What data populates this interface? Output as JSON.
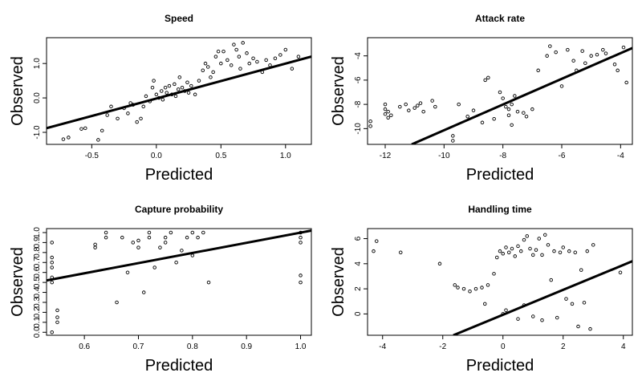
{
  "figure": {
    "xlabel": "Predicted",
    "ylabel": "Observed"
  },
  "chart_data": [
    {
      "type": "scatter",
      "title": "Speed",
      "xlabel": "Predicted",
      "ylabel": "Observed",
      "xlim": [
        -0.85,
        1.2
      ],
      "ylim": [
        -1.35,
        1.75
      ],
      "xticks": [
        -0.5,
        0.0,
        0.5,
        1.0
      ],
      "xtick_labels": [
        "-0.5",
        "0.0",
        "0.5",
        "1.0"
      ],
      "yticks": [
        -1.0,
        0.0,
        1.0
      ],
      "ytick_labels": [
        "-1.0",
        "0.0",
        "1.0"
      ],
      "grid": false,
      "fit_line": {
        "x": [
          -0.85,
          1.2
        ],
        "y": [
          -0.88,
          1.2
        ]
      },
      "points": [
        [
          -0.72,
          -1.2
        ],
        [
          -0.68,
          -1.15
        ],
        [
          -0.58,
          -0.9
        ],
        [
          -0.55,
          -0.88
        ],
        [
          -0.45,
          -1.22
        ],
        [
          -0.42,
          -0.95
        ],
        [
          -0.38,
          -0.5
        ],
        [
          -0.35,
          -0.25
        ],
        [
          -0.3,
          -0.6
        ],
        [
          -0.25,
          -0.3
        ],
        [
          -0.22,
          -0.45
        ],
        [
          -0.2,
          -0.15
        ],
        [
          -0.18,
          -0.2
        ],
        [
          -0.15,
          -0.7
        ],
        [
          -0.12,
          -0.6
        ],
        [
          -0.1,
          -0.25
        ],
        [
          -0.08,
          0.05
        ],
        [
          -0.05,
          -0.1
        ],
        [
          -0.03,
          0.3
        ],
        [
          -0.02,
          0.5
        ],
        [
          0.0,
          0.1
        ],
        [
          0.02,
          0.0
        ],
        [
          0.04,
          0.2
        ],
        [
          0.05,
          -0.05
        ],
        [
          0.07,
          0.3
        ],
        [
          0.08,
          0.15
        ],
        [
          0.1,
          0.35
        ],
        [
          0.12,
          0.1
        ],
        [
          0.14,
          0.4
        ],
        [
          0.15,
          0.05
        ],
        [
          0.17,
          0.25
        ],
        [
          0.18,
          0.6
        ],
        [
          0.2,
          0.3
        ],
        [
          0.22,
          0.2
        ],
        [
          0.24,
          0.45
        ],
        [
          0.25,
          0.15
        ],
        [
          0.27,
          0.35
        ],
        [
          0.3,
          0.1
        ],
        [
          0.33,
          0.5
        ],
        [
          0.36,
          0.8
        ],
        [
          0.38,
          1.0
        ],
        [
          0.4,
          0.9
        ],
        [
          0.42,
          0.6
        ],
        [
          0.44,
          0.75
        ],
        [
          0.46,
          1.2
        ],
        [
          0.48,
          1.35
        ],
        [
          0.5,
          1.0
        ],
        [
          0.52,
          1.35
        ],
        [
          0.55,
          1.1
        ],
        [
          0.58,
          0.95
        ],
        [
          0.6,
          1.55
        ],
        [
          0.62,
          1.4
        ],
        [
          0.64,
          1.2
        ],
        [
          0.65,
          0.85
        ],
        [
          0.67,
          1.6
        ],
        [
          0.7,
          1.3
        ],
        [
          0.72,
          1.0
        ],
        [
          0.75,
          1.15
        ],
        [
          0.78,
          1.05
        ],
        [
          0.82,
          0.75
        ],
        [
          0.85,
          1.1
        ],
        [
          0.88,
          0.95
        ],
        [
          0.92,
          1.15
        ],
        [
          0.96,
          1.25
        ],
        [
          1.0,
          1.4
        ],
        [
          1.05,
          0.85
        ],
        [
          1.1,
          1.2
        ]
      ]
    },
    {
      "type": "scatter",
      "title": "Attack rate",
      "xlabel": "Predicted",
      "ylabel": "Observed",
      "xlim": [
        -12.6,
        -3.6
      ],
      "ylim": [
        -11.3,
        -2.5
      ],
      "xticks": [
        -12,
        -10,
        -8,
        -6,
        -4
      ],
      "xtick_labels": [
        "-12",
        "-10",
        "-8",
        "-6",
        "-4"
      ],
      "yticks": [
        -10,
        -8,
        -6,
        -4
      ],
      "ytick_labels": [
        "-10",
        "-8",
        "-6",
        "-4"
      ],
      "grid": false,
      "fit_line": {
        "x": [
          -11.1,
          -3.6
        ],
        "y": [
          -11.3,
          -3.35
        ]
      },
      "points": [
        [
          -12.5,
          -9.4
        ],
        [
          -12.5,
          -9.8
        ],
        [
          -12.0,
          -8.0
        ],
        [
          -12.0,
          -8.4
        ],
        [
          -12.0,
          -8.8
        ],
        [
          -11.9,
          -9.1
        ],
        [
          -11.9,
          -8.6
        ],
        [
          -11.8,
          -8.9
        ],
        [
          -11.5,
          -8.2
        ],
        [
          -11.3,
          -8.0
        ],
        [
          -11.2,
          -8.5
        ],
        [
          -11.0,
          -8.3
        ],
        [
          -10.9,
          -8.1
        ],
        [
          -10.8,
          -7.9
        ],
        [
          -10.7,
          -8.6
        ],
        [
          -10.4,
          -7.7
        ],
        [
          -10.3,
          -8.2
        ],
        [
          -9.7,
          -11.0
        ],
        [
          -9.7,
          -10.6
        ],
        [
          -9.5,
          -8.0
        ],
        [
          -9.2,
          -9.0
        ],
        [
          -9.0,
          -8.5
        ],
        [
          -8.7,
          -9.5
        ],
        [
          -8.6,
          -6.0
        ],
        [
          -8.5,
          -5.8
        ],
        [
          -8.3,
          -9.2
        ],
        [
          -8.1,
          -7.0
        ],
        [
          -8.0,
          -7.5
        ],
        [
          -7.9,
          -8.2
        ],
        [
          -7.8,
          -8.4
        ],
        [
          -7.8,
          -8.9
        ],
        [
          -7.7,
          -9.7
        ],
        [
          -7.7,
          -8.0
        ],
        [
          -7.6,
          -7.3
        ],
        [
          -7.5,
          -8.6
        ],
        [
          -7.3,
          -8.7
        ],
        [
          -7.2,
          -9.0
        ],
        [
          -7.0,
          -8.4
        ],
        [
          -6.8,
          -5.2
        ],
        [
          -6.5,
          -4.0
        ],
        [
          -6.4,
          -3.2
        ],
        [
          -6.2,
          -3.7
        ],
        [
          -6.0,
          -6.5
        ],
        [
          -5.8,
          -3.5
        ],
        [
          -5.6,
          -4.4
        ],
        [
          -5.5,
          -5.2
        ],
        [
          -5.3,
          -3.6
        ],
        [
          -5.2,
          -4.6
        ],
        [
          -5.0,
          -4.0
        ],
        [
          -4.8,
          -3.9
        ],
        [
          -4.6,
          -3.5
        ],
        [
          -4.5,
          -3.8
        ],
        [
          -4.2,
          -4.7
        ],
        [
          -4.1,
          -5.2
        ],
        [
          -3.9,
          -3.3
        ],
        [
          -3.8,
          -6.2
        ]
      ]
    },
    {
      "type": "scatter",
      "title": "Capture probability",
      "xlabel": "Predicted",
      "ylabel": "Observed",
      "xlim": [
        0.53,
        1.02
      ],
      "ylim": [
        -0.03,
        1.04
      ],
      "xticks": [
        0.6,
        0.7,
        0.8,
        0.9,
        1.0
      ],
      "xtick_labels": [
        "0.6",
        "0.7",
        "0.8",
        "0.9",
        "1.0"
      ],
      "yticks": [
        0.0,
        0.1,
        0.2,
        0.3,
        0.4,
        0.5,
        0.6,
        0.7,
        0.8,
        0.9,
        1.0
      ],
      "ytick_labels": [
        "0.0",
        "0.1",
        "0.2",
        "0.3",
        "0.4",
        "0.5",
        "0.6",
        "0.7",
        "0.8",
        "0.9",
        "1.0"
      ],
      "grid": false,
      "fit_line": {
        "x": [
          0.53,
          1.02
        ],
        "y": [
          0.52,
          1.02
        ]
      },
      "points": [
        [
          0.54,
          0.0
        ],
        [
          0.54,
          0.5
        ],
        [
          0.54,
          0.55
        ],
        [
          0.54,
          0.65
        ],
        [
          0.54,
          0.7
        ],
        [
          0.54,
          0.75
        ],
        [
          0.54,
          0.9
        ],
        [
          0.55,
          0.1
        ],
        [
          0.55,
          0.15
        ],
        [
          0.55,
          0.22
        ],
        [
          0.62,
          0.85
        ],
        [
          0.62,
          0.88
        ],
        [
          0.64,
          0.95
        ],
        [
          0.64,
          1.0
        ],
        [
          0.66,
          0.3
        ],
        [
          0.67,
          0.95
        ],
        [
          0.68,
          0.6
        ],
        [
          0.69,
          0.9
        ],
        [
          0.7,
          0.85
        ],
        [
          0.7,
          0.92
        ],
        [
          0.71,
          0.4
        ],
        [
          0.72,
          0.95
        ],
        [
          0.72,
          1.0
        ],
        [
          0.73,
          0.65
        ],
        [
          0.74,
          0.85
        ],
        [
          0.75,
          0.9
        ],
        [
          0.75,
          0.95
        ],
        [
          0.76,
          1.0
        ],
        [
          0.77,
          0.7
        ],
        [
          0.78,
          0.82
        ],
        [
          0.79,
          0.95
        ],
        [
          0.8,
          0.77
        ],
        [
          0.8,
          1.0
        ],
        [
          0.81,
          0.95
        ],
        [
          0.82,
          1.0
        ],
        [
          0.83,
          0.5
        ],
        [
          1.0,
          0.5
        ],
        [
          1.0,
          0.57
        ],
        [
          1.0,
          0.9
        ],
        [
          1.0,
          0.95
        ],
        [
          1.0,
          1.0
        ]
      ]
    },
    {
      "type": "scatter",
      "title": "Handling time",
      "xlabel": "Predicted",
      "ylabel": "Observed",
      "xlim": [
        -4.5,
        4.3
      ],
      "ylim": [
        -1.7,
        6.8
      ],
      "xticks": [
        -4,
        -2,
        0,
        2,
        4
      ],
      "xtick_labels": [
        "-4",
        "-2",
        "0",
        "2",
        "4"
      ],
      "yticks": [
        0,
        2,
        4,
        6
      ],
      "ytick_labels": [
        "0",
        "2",
        "4",
        "6"
      ],
      "grid": false,
      "fit_line": {
        "x": [
          -1.65,
          4.3
        ],
        "y": [
          -1.7,
          4.2
        ]
      },
      "points": [
        [
          -4.3,
          5.0
        ],
        [
          -4.2,
          5.8
        ],
        [
          -3.4,
          4.9
        ],
        [
          -2.1,
          4.0
        ],
        [
          -1.6,
          2.3
        ],
        [
          -1.5,
          2.1
        ],
        [
          -1.3,
          2.0
        ],
        [
          -1.1,
          1.8
        ],
        [
          -0.9,
          2.0
        ],
        [
          -0.7,
          2.1
        ],
        [
          -0.6,
          0.8
        ],
        [
          -0.5,
          2.3
        ],
        [
          -0.3,
          3.2
        ],
        [
          -0.2,
          4.5
        ],
        [
          -0.1,
          5.0
        ],
        [
          0.0,
          4.8
        ],
        [
          0.0,
          0.0
        ],
        [
          0.1,
          5.3
        ],
        [
          0.1,
          0.3
        ],
        [
          0.2,
          4.9
        ],
        [
          0.3,
          5.2
        ],
        [
          0.4,
          4.6
        ],
        [
          0.5,
          5.4
        ],
        [
          0.5,
          -0.4
        ],
        [
          0.6,
          5.0
        ],
        [
          0.7,
          5.9
        ],
        [
          0.7,
          0.7
        ],
        [
          0.8,
          6.2
        ],
        [
          0.9,
          5.2
        ],
        [
          1.0,
          4.7
        ],
        [
          1.0,
          -0.2
        ],
        [
          1.1,
          5.1
        ],
        [
          1.2,
          6.0
        ],
        [
          1.3,
          4.7
        ],
        [
          1.3,
          -0.5
        ],
        [
          1.4,
          6.3
        ],
        [
          1.5,
          5.5
        ],
        [
          1.6,
          2.7
        ],
        [
          1.7,
          5.0
        ],
        [
          1.8,
          -0.3
        ],
        [
          1.9,
          4.9
        ],
        [
          2.0,
          5.3
        ],
        [
          2.1,
          1.2
        ],
        [
          2.2,
          5.0
        ],
        [
          2.3,
          0.8
        ],
        [
          2.4,
          4.9
        ],
        [
          2.5,
          -1.0
        ],
        [
          2.6,
          3.5
        ],
        [
          2.7,
          0.9
        ],
        [
          2.8,
          5.0
        ],
        [
          2.9,
          -1.2
        ],
        [
          3.0,
          5.5
        ],
        [
          3.9,
          3.3
        ]
      ]
    }
  ]
}
